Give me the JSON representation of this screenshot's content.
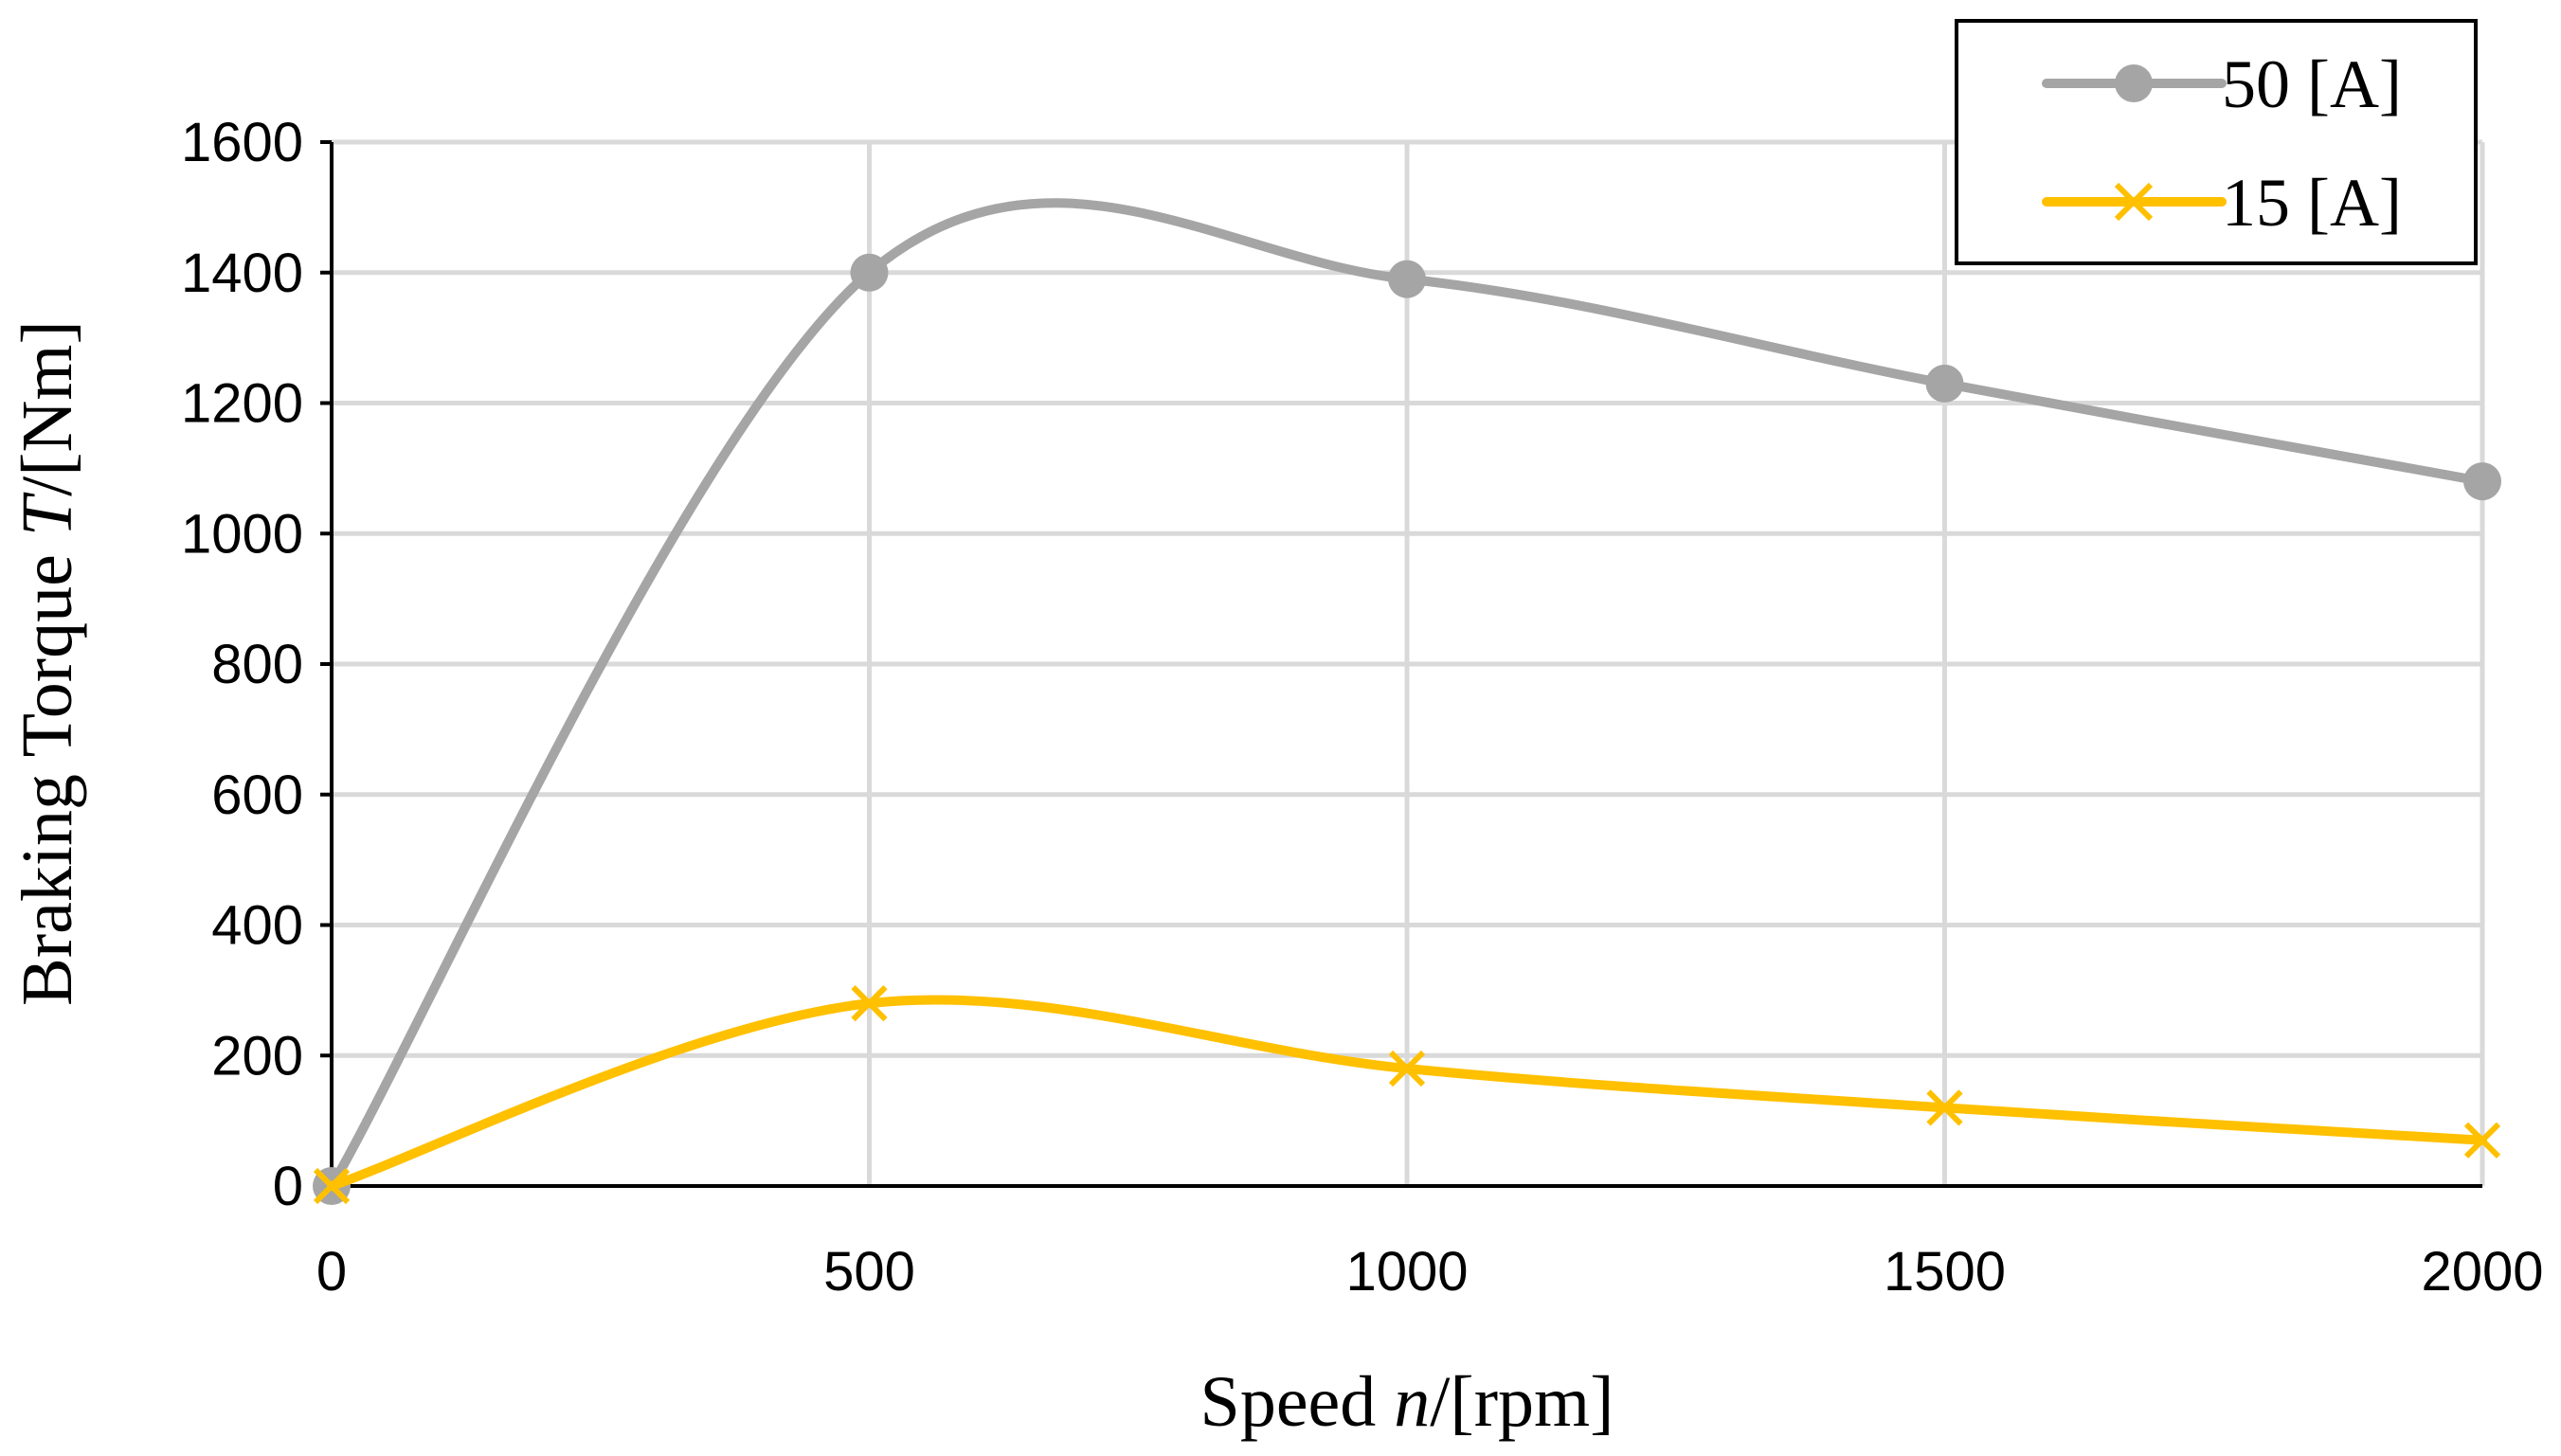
{
  "chart_data": {
    "type": "line",
    "title": "",
    "xlabel": {
      "prefix": "Speed ",
      "var": "n",
      "suffix": "/[rpm]"
    },
    "ylabel": {
      "prefix": "Braking Torque ",
      "var": "T",
      "suffix": "/[Nm]"
    },
    "x": [
      0,
      500,
      1000,
      1500,
      2000
    ],
    "xlim": [
      0,
      2000
    ],
    "ylim": [
      0,
      1600
    ],
    "x_ticks": [
      0,
      500,
      1000,
      1500,
      2000
    ],
    "y_ticks": [
      0,
      200,
      400,
      600,
      800,
      1000,
      1200,
      1400,
      1600
    ],
    "grid": true,
    "smooth": true,
    "legend_position": "top-right",
    "series": [
      {
        "name": "50 [A]",
        "values": [
          0,
          1400,
          1390,
          1230,
          1080
        ],
        "color": "#a5a5a5",
        "marker": "circle"
      },
      {
        "name": "15 [A]",
        "values": [
          0,
          280,
          180,
          120,
          70
        ],
        "color": "#ffc000",
        "marker": "x"
      }
    ]
  }
}
